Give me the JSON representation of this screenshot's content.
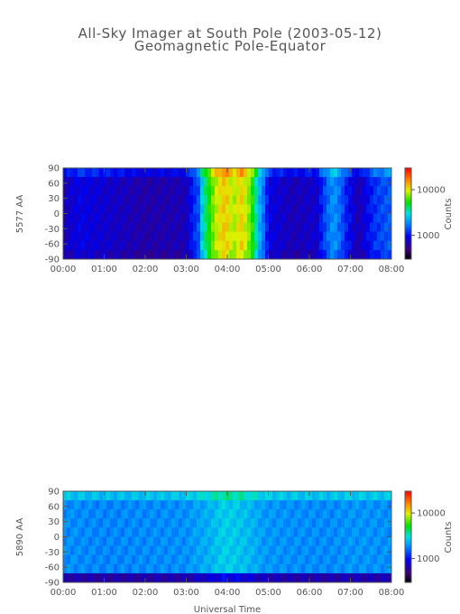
{
  "chart_data": [
    {
      "type": "heatmap",
      "title": "All-Sky Imager at South Pole (2003-05-12)",
      "subtitle": "Geomagnetic Pole-Equator",
      "ylabel": "5577 AA",
      "xlabel": "",
      "xticks": [
        "00:00",
        "01:00",
        "02:00",
        "03:00",
        "04:00",
        "05:00",
        "06:00",
        "07:00",
        "08:00"
      ],
      "yticks": [
        "90",
        "60",
        "30",
        "0",
        "-30",
        "-60",
        "-90"
      ],
      "xlim": [
        0,
        8
      ],
      "ylim": [
        -90,
        90
      ],
      "colorbar": {
        "label": "Counts",
        "ticks": [
          "10000",
          "1000"
        ],
        "scale": "log",
        "range": [
          300,
          30000
        ]
      },
      "z_profile": {
        "hours": [
          0,
          0.4,
          1.0,
          2.0,
          3.0,
          3.3,
          3.55,
          3.75,
          3.95,
          4.15,
          4.35,
          4.55,
          4.75,
          5.0,
          5.6,
          6.2,
          6.6,
          6.9,
          7.2,
          7.6,
          8.0
        ],
        "counts": [
          700,
          900,
          800,
          650,
          700,
          1400,
          5000,
          9000,
          12000,
          8000,
          11000,
          7000,
          2500,
          900,
          700,
          800,
          2000,
          1100,
          650,
          1200,
          1500
        ]
      }
    },
    {
      "type": "heatmap",
      "title": "",
      "ylabel": "5890 AA",
      "xlabel": "Universal Time",
      "xticks": [
        "00:00",
        "01:00",
        "02:00",
        "03:00",
        "04:00",
        "05:00",
        "06:00",
        "07:00",
        "08:00"
      ],
      "yticks": [
        "90",
        "60",
        "30",
        "0",
        "-30",
        "-60",
        "-90"
      ],
      "xlim": [
        0,
        8
      ],
      "ylim": [
        -90,
        90
      ],
      "colorbar": {
        "label": "Counts",
        "ticks": [
          "10000",
          "1000"
        ],
        "scale": "log",
        "range": [
          300,
          30000
        ]
      },
      "z_profile": {
        "hours": [
          0,
          1.0,
          2.0,
          3.0,
          3.6,
          3.9,
          4.2,
          4.5,
          4.9,
          5.5,
          6.5,
          7.0,
          8.0
        ],
        "counts": [
          1900,
          1800,
          1850,
          1900,
          2300,
          2700,
          2600,
          2400,
          2000,
          1900,
          1850,
          1950,
          1900
        ]
      }
    }
  ]
}
